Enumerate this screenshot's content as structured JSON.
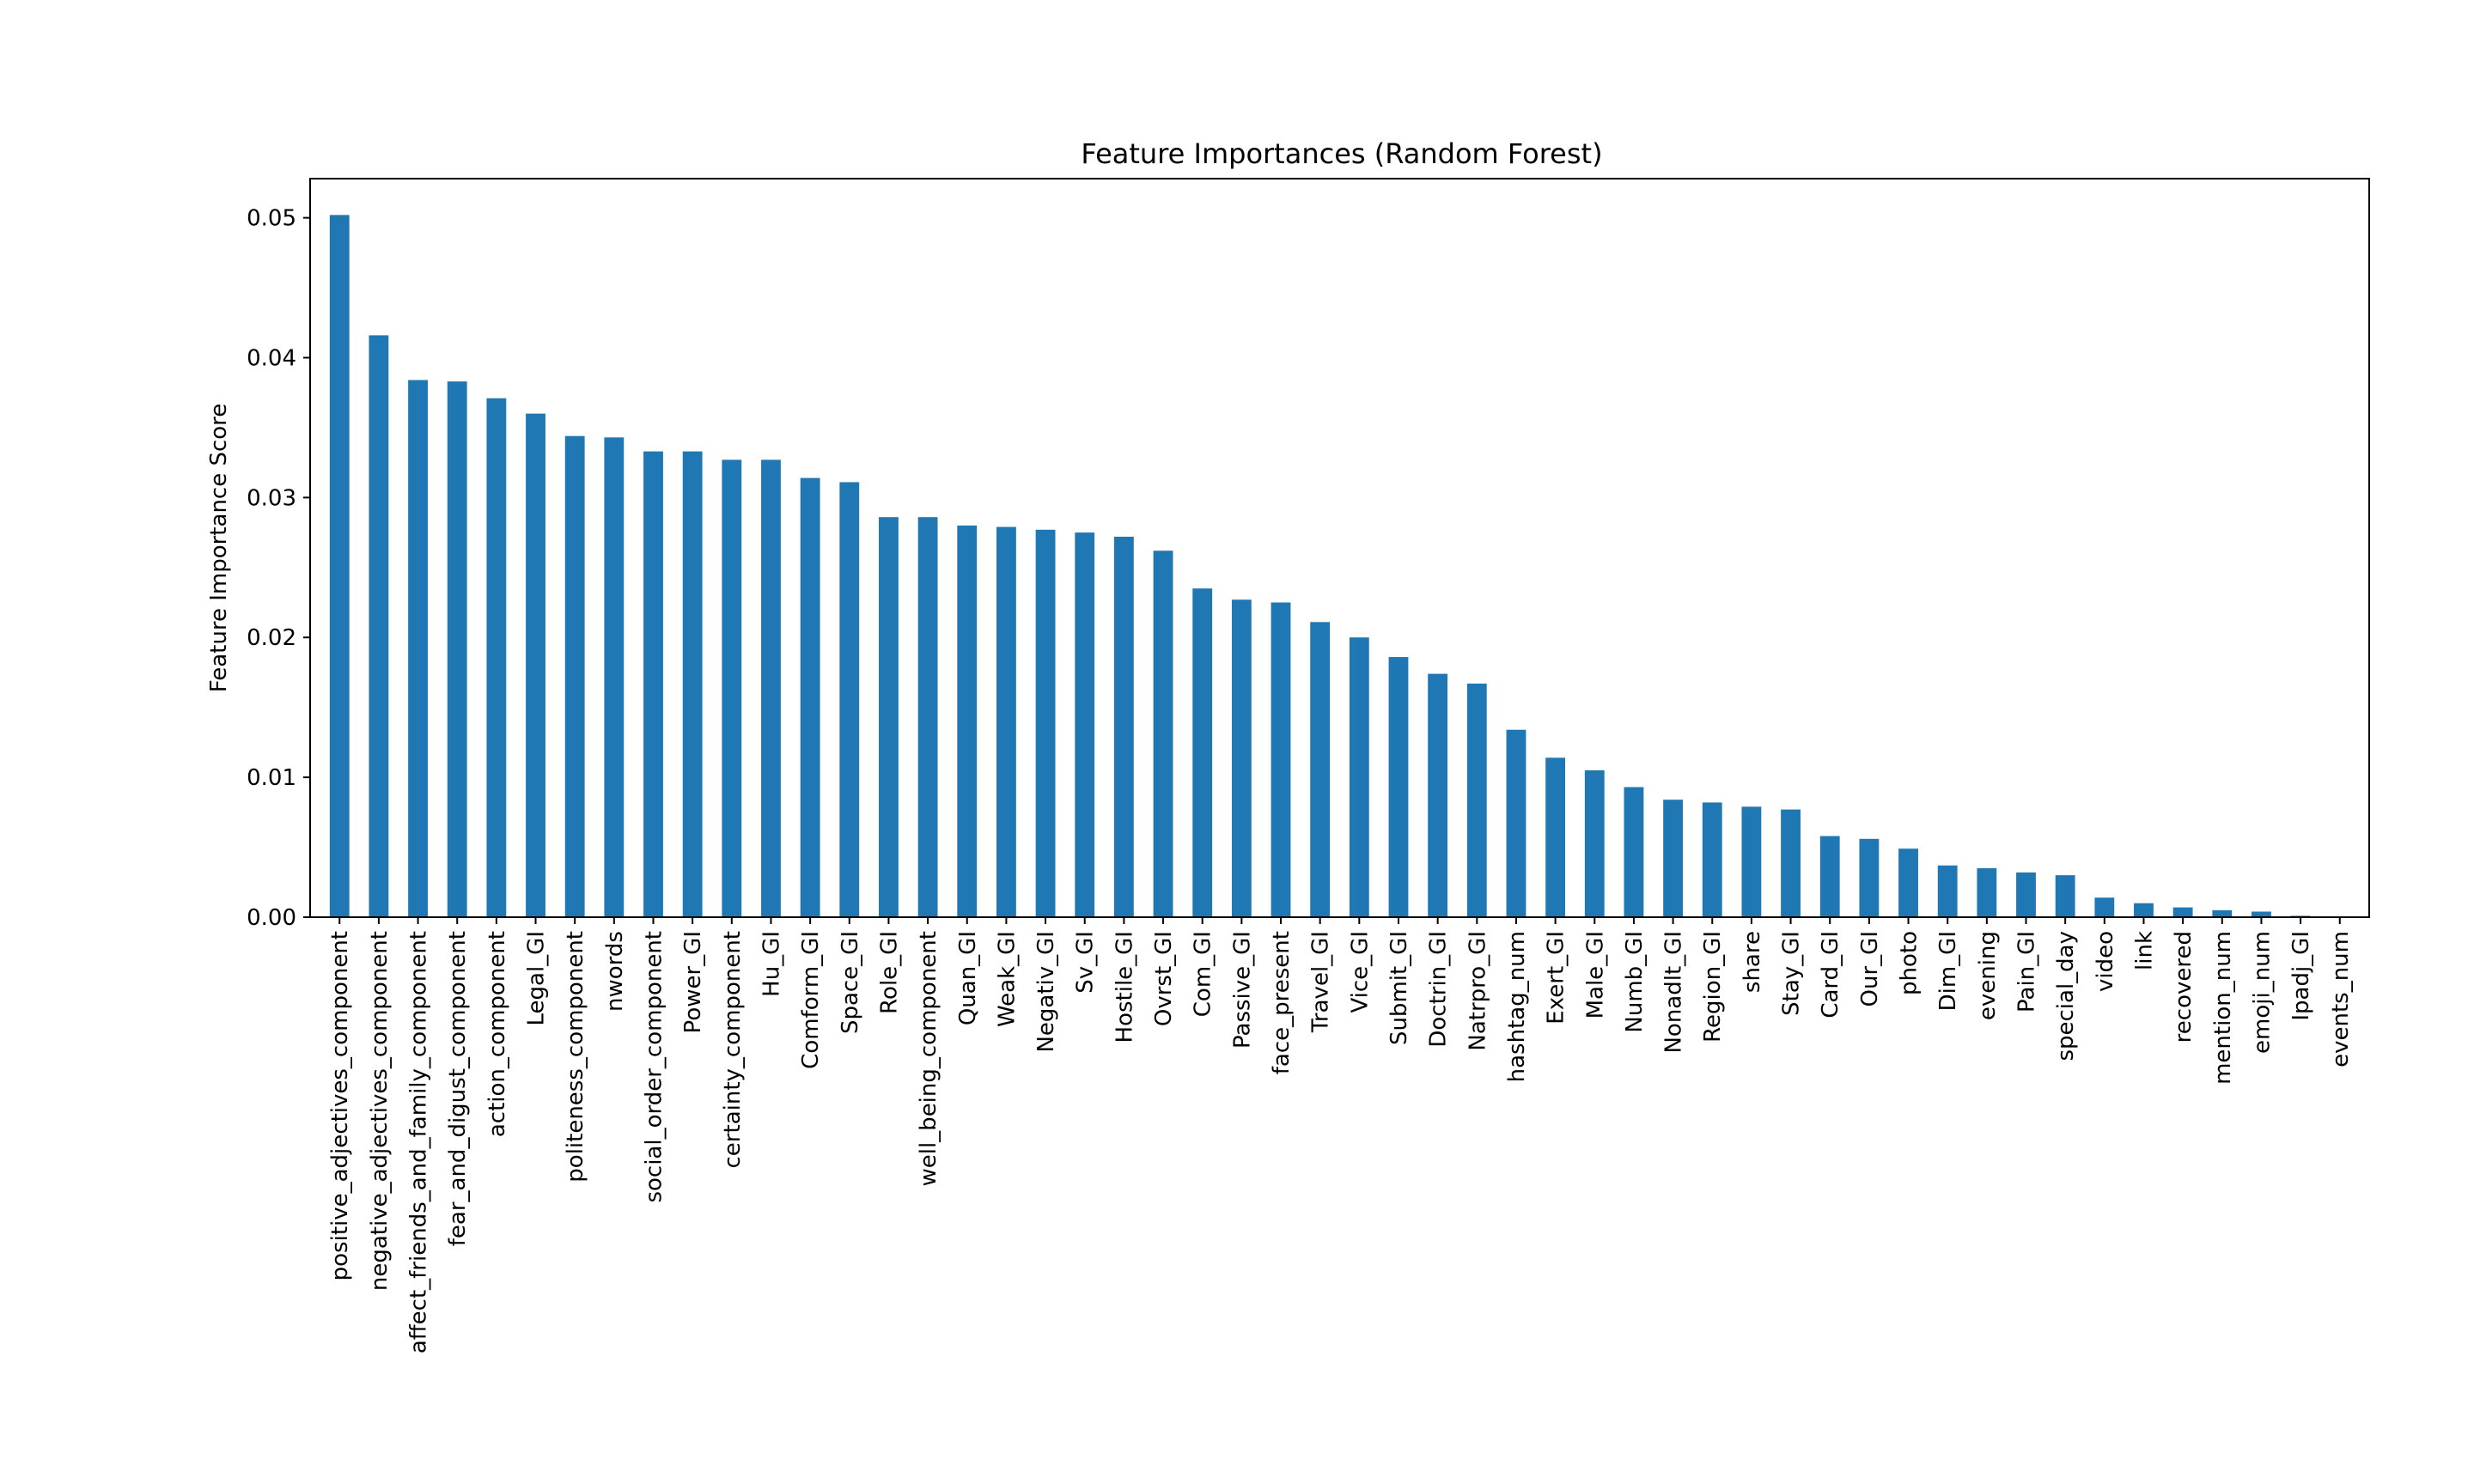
{
  "chart_data": {
    "type": "bar",
    "title": "Feature Importances (Random Forest)",
    "xlabel": "",
    "ylabel": "Feature Importance Score",
    "ylim": [
      0,
      0.0528
    ],
    "yticks": [
      "0.00",
      "0.01",
      "0.02",
      "0.03",
      "0.04",
      "0.05"
    ],
    "bar_color": "#1f77b4",
    "grid": false,
    "categories": [
      "positive_adjectives_component",
      "negative_adjectives_component",
      "affect_friends_and_family_component",
      "fear_and_digust_component",
      "action_component",
      "Legal_GI",
      "politeness_component",
      "nwords",
      "social_order_component",
      "Power_GI",
      "certainty_component",
      "Hu_GI",
      "Comform_GI",
      "Space_GI",
      "Role_GI",
      "well_being_component",
      "Quan_GI",
      "Weak_GI",
      "Negativ_GI",
      "Sv_GI",
      "Hostile_GI",
      "Ovrst_GI",
      "Com_GI",
      "Passive_GI",
      "face_present",
      "Travel_GI",
      "Vice_GI",
      "Submit_GI",
      "Doctrin_GI",
      "Natrpro_GI",
      "hashtag_num",
      "Exert_GI",
      "Male_GI",
      "Numb_GI",
      "Nonadlt_GI",
      "Region_GI",
      "share",
      "Stay_GI",
      "Card_GI",
      "Our_GI",
      "photo",
      "Dim_GI",
      "evening",
      "Pain_GI",
      "special_day",
      "video",
      "link",
      "recovered",
      "mention_num",
      "emoji_num",
      "Ipadj_GI",
      "events_num"
    ],
    "values": [
      0.0502,
      0.0416,
      0.0384,
      0.0383,
      0.0371,
      0.036,
      0.0344,
      0.0343,
      0.0333,
      0.0333,
      0.0327,
      0.0327,
      0.0314,
      0.0311,
      0.0286,
      0.0286,
      0.028,
      0.0279,
      0.0277,
      0.0275,
      0.0272,
      0.0262,
      0.0235,
      0.0227,
      0.0225,
      0.0211,
      0.02,
      0.0186,
      0.0174,
      0.0167,
      0.0134,
      0.0114,
      0.0105,
      0.0093,
      0.0084,
      0.0082,
      0.0079,
      0.0077,
      0.0058,
      0.0056,
      0.0049,
      0.0037,
      0.0035,
      0.0032,
      0.003,
      0.0014,
      0.001,
      0.0007,
      0.0005,
      0.0004,
      0.0001,
      0.0
    ]
  }
}
